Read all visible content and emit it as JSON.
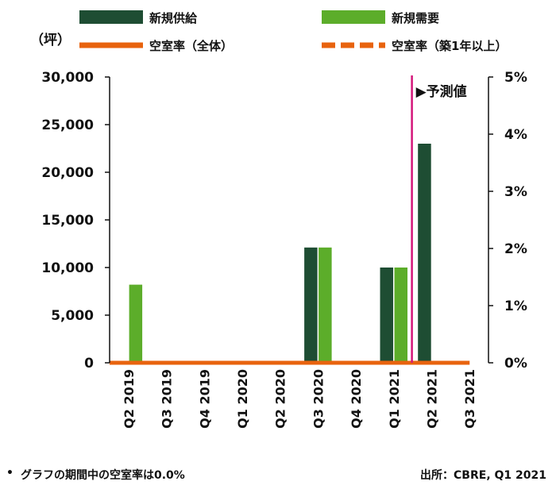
{
  "chart_data": {
    "type": "bar",
    "categories": [
      "Q2 2019",
      "Q3 2019",
      "Q4 2019",
      "Q1 2020",
      "Q2 2020",
      "Q3 2020",
      "Q4 2020",
      "Q1 2021",
      "Q2 2021",
      "Q3 2021"
    ],
    "series": [
      {
        "name": "新規供給",
        "kind": "bar",
        "axis": "left",
        "color": "#1e4d33",
        "values": [
          0,
          0,
          0,
          0,
          0,
          12100,
          0,
          10000,
          23000,
          0
        ]
      },
      {
        "name": "新規需要",
        "kind": "bar",
        "axis": "left",
        "color": "#5cad2a",
        "values": [
          8200,
          0,
          0,
          0,
          0,
          12100,
          0,
          10000,
          0,
          0
        ]
      },
      {
        "name": "空室率（全体）",
        "kind": "line",
        "axis": "right",
        "color": "#e8630e",
        "values": [
          0,
          0,
          0,
          0,
          0,
          0,
          0,
          0,
          0,
          0
        ]
      },
      {
        "name": "空室率（築1年以上）",
        "kind": "line-dashed",
        "axis": "right",
        "color": "#e8630e",
        "values": [
          0,
          0,
          0,
          0,
          0,
          0,
          0,
          0,
          0,
          0
        ]
      }
    ],
    "y_left": {
      "label": "（坪）",
      "range": [
        0,
        30000
      ],
      "ticks": [
        "0",
        "5,000",
        "10,000",
        "15,000",
        "20,000",
        "25,000",
        "30,000"
      ]
    },
    "y_right": {
      "range": [
        0,
        5
      ],
      "ticks": [
        "0%",
        "1%",
        "2%",
        "3%",
        "4%",
        "5%"
      ]
    },
    "forecast_marker": {
      "label": "▶予測値",
      "after_category": "Q1 2021",
      "color": "#d4167a"
    },
    "grid": false
  },
  "footnote": "グラフの期間中の空室率は0.0%",
  "footnote_bullet": "•",
  "source": "出所：CBRE, Q1 2021"
}
